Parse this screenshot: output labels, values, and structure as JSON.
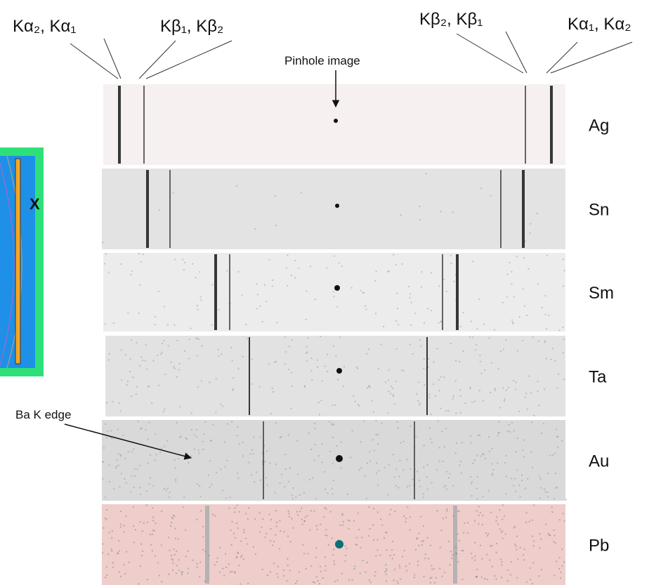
{
  "labels": {
    "left_alpha": "Kα₂, Kα₁",
    "left_beta": "Kβ₁, Kβ₂",
    "right_beta": "Kβ₂, Kβ₁",
    "right_alpha": "Kα₁, Kα₂",
    "pinhole": "Pinhole image",
    "edge": "Ba K edge",
    "detector": "X"
  },
  "rows": [
    "Ag",
    "Sn",
    "Sm",
    "Ta",
    "Au",
    "Pb"
  ]
}
